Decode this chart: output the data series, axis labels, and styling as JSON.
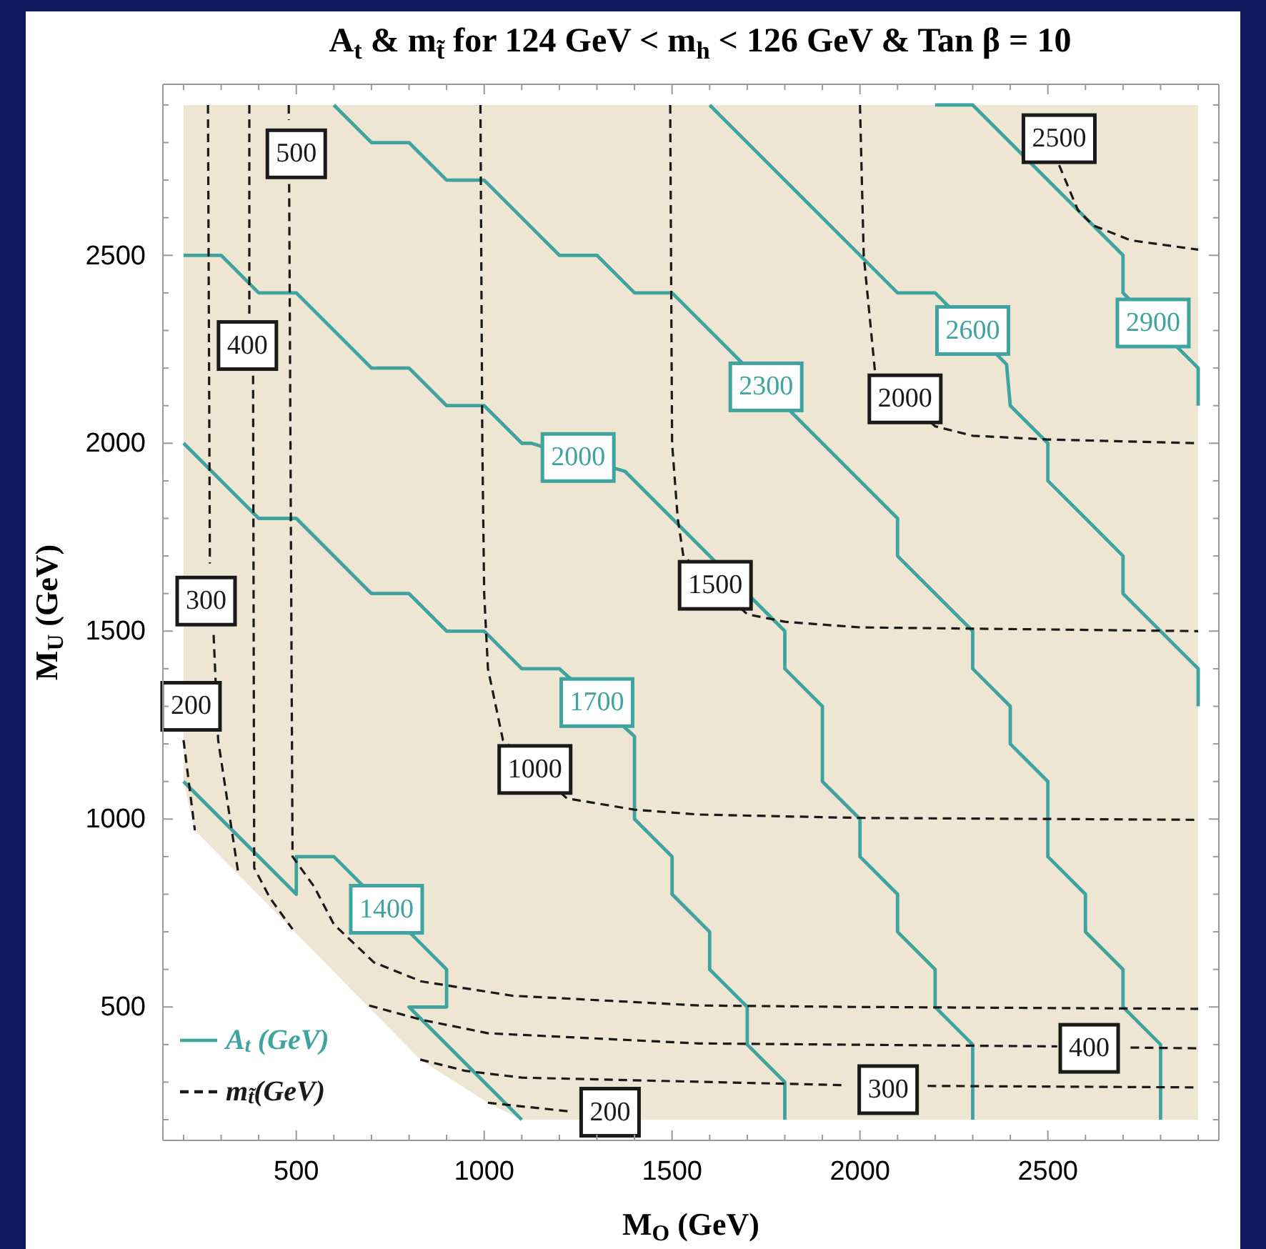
{
  "chart_data": {
    "type": "line",
    "title": "A$_{t}$ & m$_{t̃}$ for 124 GeV < m$_{h}$ < 126 GeV & Tan β = 10",
    "xlabel": "M$_{O}$ (GeV)",
    "ylabel": "M$_{U}$ (GeV)",
    "xlim": [
      145,
      2955
    ],
    "ylim": [
      145,
      2955
    ],
    "xticks": [
      {
        "value": 200,
        "label": null
      },
      {
        "value": 300,
        "label": null
      },
      {
        "value": 400,
        "label": null
      },
      500,
      {
        "value": 600,
        "label": null
      },
      {
        "value": 700,
        "label": null
      },
      {
        "value": 800,
        "label": null
      },
      {
        "value": 900,
        "label": null
      },
      1000,
      {
        "value": 1100,
        "label": null
      },
      {
        "value": 1200,
        "label": null
      },
      {
        "value": 1300,
        "label": null
      },
      {
        "value": 1400,
        "label": null
      },
      1500,
      {
        "value": 1600,
        "label": null
      },
      {
        "value": 1700,
        "label": null
      },
      {
        "value": 1800,
        "label": null
      },
      {
        "value": 1900,
        "label": null
      },
      2000,
      {
        "value": 2100,
        "label": null
      },
      {
        "value": 2200,
        "label": null
      },
      {
        "value": 2300,
        "label": null
      },
      {
        "value": 2400,
        "label": null
      },
      2500,
      {
        "value": 2600,
        "label": null
      },
      {
        "value": 2700,
        "label": null
      },
      {
        "value": 2800,
        "label": null
      },
      {
        "value": 2900,
        "label": null
      }
    ],
    "yticks": [
      {
        "value": 200,
        "label": null
      },
      {
        "value": 300,
        "label": null
      },
      {
        "value": 400,
        "label": null
      },
      500,
      {
        "value": 600,
        "label": null
      },
      {
        "value": 700,
        "label": null
      },
      {
        "value": 800,
        "label": null
      },
      {
        "value": 900,
        "label": null
      },
      1000,
      {
        "value": 1100,
        "label": null
      },
      {
        "value": 1200,
        "label": null
      },
      {
        "value": 1300,
        "label": null
      },
      {
        "value": 1400,
        "label": null
      },
      1500,
      {
        "value": 1600,
        "label": null
      },
      {
        "value": 1700,
        "label": null
      },
      {
        "value": 1800,
        "label": null
      },
      {
        "value": 1900,
        "label": null
      },
      2000,
      {
        "value": 2100,
        "label": null
      },
      {
        "value": 2200,
        "label": null
      },
      {
        "value": 2300,
        "label": null
      },
      {
        "value": 2400,
        "label": null
      },
      2500,
      {
        "value": 2600,
        "label": null
      },
      {
        "value": 2700,
        "label": null
      },
      {
        "value": 2800,
        "label": null
      },
      {
        "value": 2900,
        "label": null
      }
    ],
    "legend": "bottom left",
    "line_style": "solid",
    "annotations": [
      {
        "text": "1400",
        "x": 740,
        "y": 760
      },
      {
        "text": "1700",
        "x": 1300,
        "y": 1310
      },
      {
        "text": "2000",
        "x": 1250,
        "y": 1962
      },
      {
        "text": "2300",
        "x": 1750,
        "y": 2150
      },
      {
        "text": "2600",
        "x": 2300,
        "y": 2300
      },
      {
        "text": "2900",
        "x": 2780,
        "y": 2320
      },
      {
        "text": "200",
        "x": 220,
        "y": 1300
      },
      {
        "text": "200",
        "x": 1335,
        "y": 220
      },
      {
        "text": "300",
        "x": 260,
        "y": 1580
      },
      {
        "text": "300",
        "x": 2075,
        "y": 280
      },
      {
        "text": "400",
        "x": 370,
        "y": 2260
      },
      {
        "text": "400",
        "x": 2610,
        "y": 390
      },
      {
        "text": "500",
        "x": 500,
        "y": 2770
      },
      {
        "text": "1000",
        "x": 1135,
        "y": 1132
      },
      {
        "text": "1500",
        "x": 1615,
        "y": 1622
      },
      {
        "text": "2000",
        "x": 2120,
        "y": 2118
      },
      {
        "text": "2500",
        "x": 2530,
        "y": 2740
      }
    ],
    "series": [
      {
        "name": "A$_{t}$ (GeV)",
        "color": "#3fa3a0",
        "x": [
          200,
          500,
          500,
          600,
          820,
          900,
          900,
          800,
          1100
        ],
        "values": [
          1100,
          800,
          900,
          900,
          680,
          600,
          500,
          500,
          200
        ]
      },
      {
        "color": "#3fa3a0",
        "x": [
          200,
          400,
          500,
          700,
          800,
          900,
          1000,
          1100,
          1200,
          1400,
          1400,
          1500,
          1500,
          1600,
          1600,
          1700,
          1700,
          1800,
          1800
        ],
        "values": [
          2000,
          1800,
          1800,
          1600,
          1600,
          1500,
          1500,
          1400,
          1400,
          1220,
          1000,
          900,
          800,
          700,
          600,
          500,
          400,
          300,
          200
        ]
      },
      {
        "color": "#3fa3a0",
        "x": [
          200,
          300,
          400,
          500,
          700,
          800,
          900,
          1000,
          1100,
          1125,
          1375,
          1800,
          1800,
          1900,
          1900,
          2000,
          2000,
          2100,
          2100,
          2200,
          2200,
          2300,
          2300
        ],
        "values": [
          2500,
          2500,
          2400,
          2400,
          2200,
          2200,
          2100,
          2100,
          2000,
          2000,
          1925,
          1500,
          1400,
          1300,
          1100,
          1000,
          900,
          800,
          700,
          600,
          500,
          400,
          200
        ]
      },
      {
        "color": "#3fa3a0",
        "x": [
          600,
          700,
          800,
          900,
          1000,
          1200,
          1300,
          1400,
          1500,
          1650,
          1850,
          2100,
          2100,
          2300,
          2300,
          2400,
          2400,
          2500,
          2500,
          2600,
          2600,
          2700,
          2700,
          2800,
          2800
        ],
        "values": [
          2900,
          2800,
          2800,
          2700,
          2700,
          2500,
          2500,
          2400,
          2400,
          2250,
          2050,
          1800,
          1700,
          1500,
          1400,
          1300,
          1200,
          1100,
          900,
          800,
          700,
          600,
          500,
          400,
          200
        ]
      },
      {
        "color": "#3fa3a0",
        "x": [
          1600,
          2100,
          2200,
          2390,
          2400,
          2500,
          2500,
          2700,
          2700,
          2900,
          2900
        ],
        "values": [
          2900,
          2400,
          2400,
          2210,
          2100,
          2000,
          1900,
          1700,
          1600,
          1400,
          1300
        ]
      },
      {
        "color": "#3fa3a0",
        "x": [
          2200,
          2300,
          2700,
          2700,
          2870,
          2900,
          2900
        ],
        "values": [
          2900,
          2900,
          2500,
          2400,
          2230,
          2200,
          2100
        ]
      },
      {
        "name": "m$_{t̃}$(GeV)",
        "color": "#1a1a1a",
        "line_style": "dashed",
        "x": [
          200,
          230
        ],
        "values": [
          1210,
          970
        ]
      },
      {
        "color": "#1a1a1a",
        "line_style": "dashed",
        "x": [
          1010,
          1230
        ],
        "values": [
          245,
          222
        ]
      },
      {
        "color": "#1a1a1a",
        "line_style": "dashed",
        "x": [
          265,
          270
        ],
        "values": [
          2900,
          1680
        ]
      },
      {
        "color": "#1a1a1a",
        "line_style": "dashed",
        "x": [
          280,
          292,
          345
        ],
        "values": [
          1490,
          1210,
          860
        ]
      },
      {
        "color": "#1a1a1a",
        "line_style": "dashed",
        "x": [
          830,
          950,
          1100,
          1570,
          1960
        ],
        "values": [
          360,
          330,
          312,
          301,
          292
        ]
      },
      {
        "color": "#1a1a1a",
        "line_style": "dashed",
        "x": [
          2180,
          2900
        ],
        "values": [
          290,
          286
        ]
      },
      {
        "color": "#1a1a1a",
        "line_style": "dashed",
        "x": [
          375,
          375
        ],
        "values": [
          2900,
          2340
        ]
      },
      {
        "color": "#1a1a1a",
        "line_style": "dashed",
        "x": [
          385,
          388,
          430,
          490
        ],
        "values": [
          2180,
          870,
          790,
          707
        ]
      },
      {
        "color": "#1a1a1a",
        "line_style": "dashed",
        "x": [
          694,
          833,
          1011,
          1571,
          2296,
          2525
        ],
        "values": [
          504,
          466,
          430,
          403,
          397,
          395
        ]
      },
      {
        "color": "#1a1a1a",
        "line_style": "dashed",
        "x": [
          2720,
          2900
        ],
        "values": [
          392,
          390
        ]
      },
      {
        "color": "#1a1a1a",
        "line_style": "dashed",
        "x": [
          480,
          480
        ],
        "values": [
          2900,
          2860
        ]
      },
      {
        "color": "#1a1a1a",
        "line_style": "dashed",
        "x": [
          481,
          490,
          547,
          600,
          706,
          833,
          1075,
          1571,
          2000,
          2900
        ],
        "values": [
          2690,
          900,
          821,
          720,
          619,
          568,
          530,
          504,
          500,
          495
        ]
      },
      {
        "color": "#1a1a1a",
        "line_style": "dashed",
        "x": [
          990,
          995,
          1000,
          1010,
          1050,
          1220,
          1400,
          1570,
          2000,
          2900
        ],
        "values": [
          2900,
          2000,
          1600,
          1400,
          1210,
          1055,
          1025,
          1012,
          1003,
          998
        ]
      },
      {
        "color": "#1a1a1a",
        "line_style": "dashed",
        "x": [
          1495,
          1500,
          1515,
          1530,
          1700,
          1800,
          2000,
          2900
        ],
        "values": [
          2900,
          2000,
          1800,
          1700,
          1545,
          1525,
          1510,
          1500
        ]
      },
      {
        "color": "#1a1a1a",
        "line_style": "dashed",
        "x": [
          2000,
          2010,
          2040,
          2200,
          2300,
          2500,
          2900
        ],
        "values": [
          2900,
          2500,
          2190,
          2045,
          2020,
          2010,
          2000
        ]
      },
      {
        "color": "#1a1a1a",
        "line_style": "dashed",
        "x": [
          2530,
          2580,
          2620,
          2720,
          2900
        ],
        "values": [
          2740,
          2620,
          2580,
          2540,
          2515
        ]
      }
    ]
  }
}
